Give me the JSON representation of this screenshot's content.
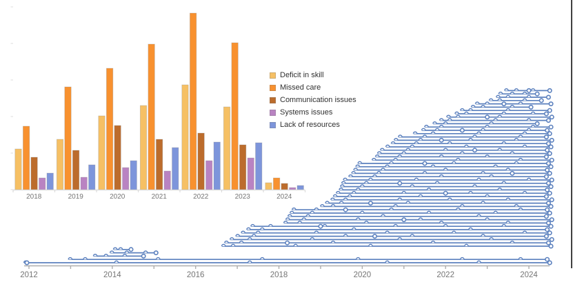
{
  "figure": {
    "background": "#ffffff",
    "border_right_color": "#3f3f3f",
    "axis_line_color": "#ADADAD",
    "axis_label_color": "#757575",
    "bar_axis_color": "#D9D9D9",
    "faint_tick_color": "#E3E3E3"
  },
  "legend": {
    "items": [
      {
        "label": "Deficit in skill",
        "color": "#F6C064"
      },
      {
        "label": "Missed care",
        "color": "#F8912F"
      },
      {
        "label": "Communication issues",
        "color": "#BC6C2C"
      },
      {
        "label": "Systems issues",
        "color": "#B983C2"
      },
      {
        "label": "Lack of resources",
        "color": "#7D95DB"
      }
    ]
  },
  "chart_data": [
    {
      "type": "bar",
      "title": "",
      "xlabel": "",
      "ylabel": "",
      "y_axis_labels_visible": false,
      "ylim": [
        0,
        280
      ],
      "note": "values are relative counts read as pixel-proportional units; source y-axis is unlabeled",
      "categories": [
        "2018",
        "2019",
        "2020",
        "2021",
        "2022",
        "2023",
        "2024"
      ],
      "series": [
        {
          "name": "Deficit in skill",
          "color": "#F6C064",
          "values": [
            59,
            73,
            107,
            122,
            152,
            120,
            10
          ]
        },
        {
          "name": "Missed care",
          "color": "#F8912F",
          "values": [
            92,
            149,
            176,
            211,
            256,
            213,
            17
          ]
        },
        {
          "name": "Communication issues",
          "color": "#BC6C2C",
          "values": [
            47,
            57,
            93,
            73,
            82,
            65,
            9
          ]
        },
        {
          "name": "Systems issues",
          "color": "#B983C2",
          "values": [
            17,
            18,
            32,
            27,
            42,
            46,
            3
          ]
        },
        {
          "name": "Lack of resources",
          "color": "#7D95DB",
          "values": [
            24,
            36,
            42,
            61,
            69,
            68,
            6
          ]
        }
      ],
      "legend_position": "right-middle",
      "y_faint_ticks": [
        10,
        63,
        116,
        169,
        222,
        275
      ]
    },
    {
      "type": "event-timeline",
      "title": "",
      "color": "#5B80BE",
      "x_range": [
        2011.8,
        2025.0
      ],
      "x_ticks": [
        2012,
        2013,
        2014,
        2015,
        2016,
        2017,
        2018,
        2019,
        2020,
        2021,
        2022,
        2023,
        2024
      ],
      "x_tick_labels": [
        "2012",
        "",
        "2014",
        "",
        "2016",
        "",
        "2018",
        "",
        "2020",
        "",
        "2022",
        "",
        "2024"
      ],
      "rows": [
        {
          "s": 2011.88,
          "e": 2024.5,
          "b": [
            2014.1,
            2017.3,
            2020.6,
            2022.8
          ],
          "d": [
            2011.95
          ]
        },
        {
          "s": 2012.95,
          "e": 2024.44,
          "b": [
            2013.35,
            2015.1,
            2017.6,
            2019.9,
            2022.4,
            2023.8
          ],
          "d": []
        },
        {
          "s": 2013.55,
          "e": 2014.75,
          "b": [
            2013.85,
            2014.3
          ],
          "d": []
        },
        {
          "s": 2013.95,
          "e": 2015.05,
          "b": [
            2014.35,
            2014.8
          ],
          "d": []
        },
        {
          "s": 2014.03,
          "e": 2014.45,
          "b": [
            2014.2
          ],
          "d": []
        },
        {
          "s": 2016.63,
          "e": 2024.53,
          "b": [
            2016.9,
            2018.4,
            2020.2,
            2022.5
          ],
          "d": []
        },
        {
          "s": 2016.7,
          "e": 2024.47,
          "b": [
            2017.1,
            2019.3,
            2021.7,
            2023.6
          ],
          "d": [
            2018.2
          ]
        },
        {
          "s": 2016.83,
          "e": 2024.55,
          "b": [
            2017.3,
            2018.8,
            2020.9,
            2023.1
          ],
          "d": []
        },
        {
          "s": 2016.97,
          "e": 2024.42,
          "b": [
            2017.4,
            2019.6,
            2021.2,
            2022.9
          ],
          "d": [
            2020.3
          ]
        },
        {
          "s": 2017.1,
          "e": 2024.5,
          "b": [
            2017.5,
            2018.9,
            2020.6,
            2022.2,
            2023.9
          ],
          "d": []
        },
        {
          "s": 2017.23,
          "e": 2024.44,
          "b": [
            2017.6,
            2019.8,
            2022.6
          ],
          "d": []
        },
        {
          "s": 2017.33,
          "e": 2024.53,
          "b": [
            2017.8,
            2019.1,
            2020.8,
            2022.0,
            2023.4
          ],
          "d": [
            2019.0
          ]
        },
        {
          "s": 2018.12,
          "e": 2024.47,
          "b": [
            2018.5,
            2020.1,
            2021.9,
            2023.5
          ],
          "d": []
        },
        {
          "s": 2018.17,
          "e": 2024.55,
          "b": [
            2018.6,
            2019.9,
            2021.4,
            2023.0
          ],
          "d": [
            2021.0
          ]
        },
        {
          "s": 2018.22,
          "e": 2024.42,
          "b": [
            2018.7,
            2020.5,
            2022.8
          ],
          "d": []
        },
        {
          "s": 2018.27,
          "e": 2024.5,
          "b": [
            2018.8,
            2020.0,
            2021.6,
            2023.2
          ],
          "d": []
        },
        {
          "s": 2018.32,
          "e": 2024.44,
          "b": [
            2018.9,
            2020.7,
            2022.3,
            2023.8
          ],
          "d": [
            2019.6
          ]
        },
        {
          "s": 2019.0,
          "e": 2024.53,
          "b": [
            2019.3,
            2020.8,
            2022.4,
            2023.7
          ],
          "d": []
        },
        {
          "s": 2019.12,
          "e": 2024.47,
          "b": [
            2019.5,
            2021.1,
            2022.9
          ],
          "d": [
            2020.2
          ]
        },
        {
          "s": 2019.25,
          "e": 2024.55,
          "b": [
            2019.6,
            2020.9,
            2022.1,
            2023.5
          ],
          "d": []
        },
        {
          "s": 2019.31,
          "e": 2024.42,
          "b": [
            2019.7,
            2021.4,
            2023.0
          ],
          "d": []
        },
        {
          "s": 2019.38,
          "e": 2024.5,
          "b": [
            2019.8,
            2021.0,
            2022.6,
            2023.9
          ],
          "d": [
            2022.0
          ]
        },
        {
          "s": 2019.45,
          "e": 2024.44,
          "b": [
            2019.9,
            2021.6,
            2023.3
          ],
          "d": []
        },
        {
          "s": 2019.48,
          "e": 2024.53,
          "b": [
            2020.0,
            2021.2,
            2022.7
          ],
          "d": []
        },
        {
          "s": 2019.51,
          "e": 2024.47,
          "b": [
            2020.1,
            2021.8,
            2023.4
          ],
          "d": [
            2020.9
          ]
        },
        {
          "s": 2019.55,
          "e": 2024.55,
          "b": [
            2020.2,
            2021.3,
            2022.8,
            2024.0
          ],
          "d": []
        },
        {
          "s": 2019.68,
          "e": 2024.42,
          "b": [
            2020.3,
            2021.9,
            2023.1
          ],
          "d": []
        },
        {
          "s": 2019.75,
          "e": 2024.5,
          "b": [
            2020.4,
            2021.5,
            2022.9
          ],
          "d": [
            2023.6
          ]
        },
        {
          "s": 2019.8,
          "e": 2024.44,
          "b": [
            2020.5,
            2022.0,
            2023.5
          ],
          "d": []
        },
        {
          "s": 2019.85,
          "e": 2024.53,
          "b": [
            2020.6,
            2021.7,
            2023.2
          ],
          "d": []
        },
        {
          "s": 2019.9,
          "e": 2024.47,
          "b": [
            2020.7,
            2022.2,
            2023.7
          ],
          "d": [
            2021.5
          ]
        },
        {
          "s": 2020.24,
          "e": 2024.55,
          "b": [
            2020.8,
            2022.3,
            2023.8
          ],
          "d": []
        },
        {
          "s": 2020.32,
          "e": 2024.42,
          "b": [
            2020.9,
            2021.9,
            2023.0
          ],
          "d": []
        },
        {
          "s": 2020.37,
          "e": 2024.5,
          "b": [
            2021.0,
            2022.4,
            2023.6
          ],
          "d": []
        },
        {
          "s": 2020.44,
          "e": 2024.44,
          "b": [
            2021.1,
            2022.0,
            2023.3
          ],
          "d": [
            2022.7
          ]
        },
        {
          "s": 2020.57,
          "e": 2024.53,
          "b": [
            2021.2,
            2022.5,
            2023.9
          ],
          "d": []
        },
        {
          "s": 2020.7,
          "e": 2024.47,
          "b": [
            2021.3,
            2022.1,
            2023.4
          ],
          "d": []
        },
        {
          "s": 2020.77,
          "e": 2024.55,
          "b": [
            2021.4,
            2022.6,
            2023.7
          ],
          "d": [
            2021.9
          ]
        },
        {
          "s": 2020.87,
          "e": 2024.42,
          "b": [
            2021.5,
            2022.7,
            2023.8
          ],
          "d": []
        },
        {
          "s": 2021.23,
          "e": 2024.5,
          "b": [
            2021.7,
            2022.8,
            2023.9
          ],
          "d": []
        },
        {
          "s": 2021.43,
          "e": 2024.44,
          "b": [
            2021.8,
            2022.9,
            2024.0
          ],
          "d": [
            2022.4
          ]
        },
        {
          "s": 2021.5,
          "e": 2024.53,
          "b": [
            2021.9,
            2023.0,
            2024.1
          ],
          "d": []
        },
        {
          "s": 2021.7,
          "e": 2024.2,
          "b": [
            2022.0,
            2023.1
          ],
          "d": []
        },
        {
          "s": 2021.86,
          "e": 2024.47,
          "b": [
            2022.1,
            2023.2,
            2024.0
          ],
          "d": []
        },
        {
          "s": 2022.03,
          "e": 2024.55,
          "b": [
            2022.3,
            2023.3
          ],
          "d": [
            2023.0
          ]
        },
        {
          "s": 2022.23,
          "e": 2024.42,
          "b": [
            2022.5,
            2023.4,
            2024.1
          ],
          "d": []
        },
        {
          "s": 2022.36,
          "e": 2024.5,
          "b": [
            2022.6,
            2023.5
          ],
          "d": []
        },
        {
          "s": 2022.62,
          "e": 2024.05,
          "b": [
            2022.9,
            2023.6
          ],
          "d": []
        },
        {
          "s": 2022.72,
          "e": 2024.53,
          "b": [
            2023.0,
            2023.8
          ],
          "d": [
            2023.4
          ]
        },
        {
          "s": 2023.05,
          "e": 2024.3,
          "b": [
            2023.3,
            2023.9
          ],
          "d": []
        },
        {
          "s": 2023.22,
          "e": 2024.47,
          "b": [
            2023.5,
            2024.0
          ],
          "d": []
        },
        {
          "s": 2023.28,
          "e": 2024.2,
          "b": [
            2023.6,
            2023.9
          ],
          "d": []
        },
        {
          "s": 2023.42,
          "e": 2024.5,
          "b": [
            2023.7,
            2024.1
          ],
          "d": [
            2024.0
          ]
        }
      ]
    }
  ]
}
